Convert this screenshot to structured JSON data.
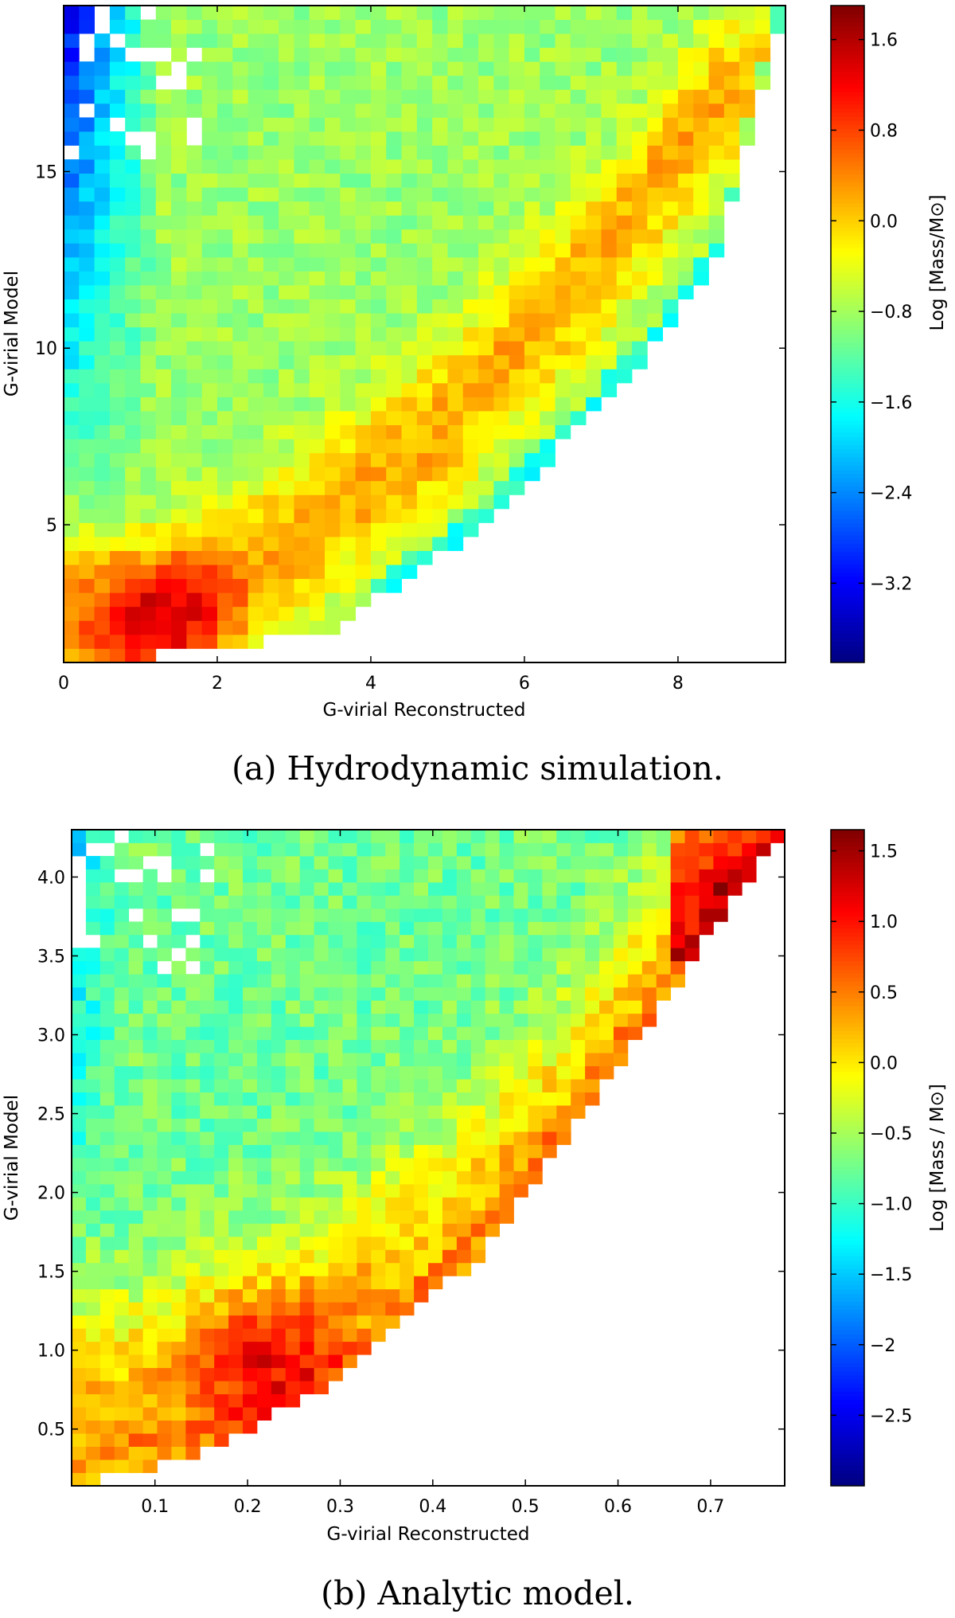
{
  "chart_data": [
    {
      "type": "heatmap",
      "caption": "(a) Hydrodynamic simulation.",
      "xlabel": "G-virial Reconstructed",
      "ylabel": "G-virial Model",
      "xlim": [
        0,
        9.4
      ],
      "ylim": [
        1.1,
        19.7
      ],
      "xticks": [
        0,
        2,
        4,
        6,
        8
      ],
      "yticks": [
        5,
        10,
        15
      ],
      "colorbar": {
        "label": "Log [Mass/M⊙]",
        "range": [
          -3.9,
          1.9
        ],
        "ticks": [
          -3.2,
          -2.4,
          -1.6,
          -0.8,
          0.0,
          0.8,
          1.6
        ],
        "colormap": "jet"
      },
      "bins": {
        "nx": 47,
        "ny": 47
      },
      "structure": {
        "description": "Mass-weighted 2D histogram; peak near reconstructed ~1.2-1.8, model ~2; dense orange band rising to the upper right; empty region below the lower envelope",
        "peak_log_mass": 1.8,
        "peak_location": [
          1.3,
          2.4
        ],
        "ridge_points": [
          [
            1.2,
            2.3
          ],
          [
            3.0,
            4.5
          ],
          [
            5.0,
            8.0
          ],
          [
            7.0,
            12.5
          ],
          [
            8.5,
            17.0
          ]
        ],
        "lower_envelope_points": [
          [
            0.6,
            1.1
          ],
          [
            3.5,
            2.0
          ],
          [
            5.5,
            5.0
          ],
          [
            7.5,
            9.5
          ],
          [
            8.5,
            12.5
          ],
          [
            9.4,
            19.7
          ]
        ]
      }
    },
    {
      "type": "heatmap",
      "caption": "(b) Analytic model.",
      "xlabel": "G-virial Reconstructed",
      "ylabel": "G-virial Model",
      "xlim": [
        0.01,
        0.78
      ],
      "ylim": [
        0.14,
        4.3
      ],
      "xticks": [
        0.1,
        0.2,
        0.3,
        0.4,
        0.5,
        0.6,
        0.7
      ],
      "yticks": [
        0.5,
        1.0,
        1.5,
        2.0,
        2.5,
        3.0,
        3.5,
        4.0
      ],
      "colorbar": {
        "label": "Log [Mass / M⊙]",
        "range": [
          -3.0,
          1.65
        ],
        "ticks": [
          -2.5,
          -2.0,
          -1.5,
          -1.0,
          -0.5,
          0.0,
          0.5,
          1.0,
          1.5
        ],
        "colormap": "jet"
      },
      "bins": {
        "nx": 50,
        "ny": 50
      },
      "structure": {
        "description": "Mass-weighted 2D histogram; triangular filled region above a diagonal lower envelope; red band along the envelope; peak near reconstructed ~0.2-0.25, model ~0.9",
        "peak_log_mass": 1.65,
        "peak_location": [
          0.22,
          0.95
        ],
        "ridge_points": [
          [
            0.12,
            0.6
          ],
          [
            0.25,
            1.0
          ],
          [
            0.4,
            1.6
          ],
          [
            0.55,
            2.5
          ],
          [
            0.7,
            3.8
          ]
        ],
        "lower_envelope_points": [
          [
            0.02,
            0.14
          ],
          [
            0.15,
            0.35
          ],
          [
            0.3,
            0.8
          ],
          [
            0.45,
            1.6
          ],
          [
            0.6,
            2.8
          ],
          [
            0.78,
            4.3
          ]
        ]
      }
    }
  ]
}
